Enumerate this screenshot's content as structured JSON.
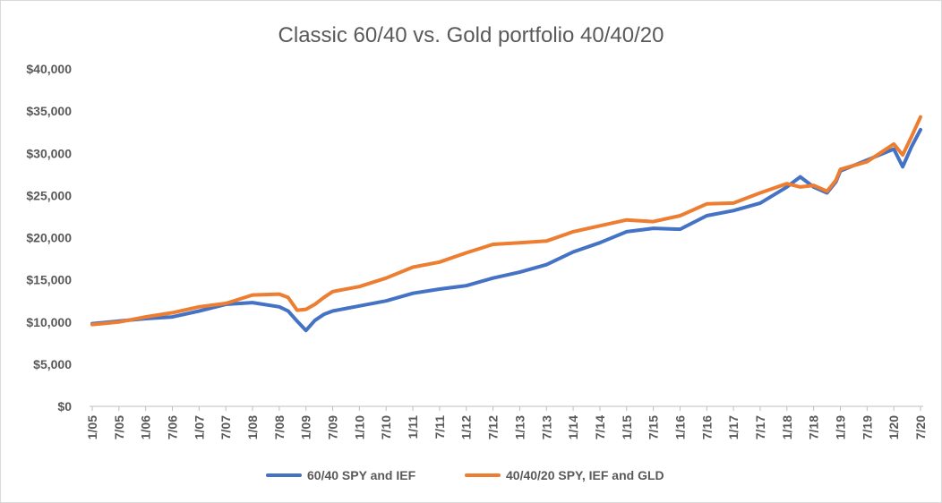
{
  "chart_data": {
    "type": "line",
    "title": "Classic 60/40 vs. Gold portfolio 40/40/20",
    "xlabel": "",
    "ylabel": "",
    "ylim": [
      0,
      40000
    ],
    "yticks": [
      "$0",
      "$5,000",
      "$10,000",
      "$15,000",
      "$20,000",
      "$25,000",
      "$30,000",
      "$35,000",
      "$40,000"
    ],
    "xticks": [
      "1/05",
      "7/05",
      "1/06",
      "7/06",
      "1/07",
      "7/07",
      "1/08",
      "7/08",
      "1/09",
      "7/09",
      "1/10",
      "7/10",
      "1/11",
      "7/11",
      "1/12",
      "7/12",
      "1/13",
      "7/13",
      "1/14",
      "7/14",
      "1/15",
      "7/15",
      "1/16",
      "7/16",
      "1/17",
      "7/17",
      "1/18",
      "7/18",
      "1/19",
      "7/19",
      "1/20",
      "7/20"
    ],
    "x": [
      "1/05",
      "7/05",
      "1/06",
      "7/06",
      "1/07",
      "7/07",
      "1/08",
      "7/08",
      "9/08",
      "11/08",
      "1/09",
      "3/09",
      "5/09",
      "7/09",
      "1/10",
      "7/10",
      "1/11",
      "7/11",
      "1/12",
      "7/12",
      "1/13",
      "7/13",
      "1/14",
      "7/14",
      "1/15",
      "7/15",
      "1/16",
      "7/16",
      "1/17",
      "7/17",
      "1/18",
      "4/18",
      "7/18",
      "10/18",
      "12/18",
      "1/19",
      "7/19",
      "1/20",
      "3/20",
      "5/20",
      "7/20"
    ],
    "series": [
      {
        "name": "60/40 SPY and IEF",
        "color": "#4472c4",
        "values": [
          9800,
          10100,
          10400,
          10600,
          11300,
          12100,
          12300,
          11800,
          11300,
          10100,
          9000,
          10200,
          10900,
          11300,
          11900,
          12500,
          13400,
          13900,
          14300,
          15200,
          15900,
          16800,
          18300,
          19400,
          20700,
          21100,
          21000,
          22600,
          23200,
          24100,
          26000,
          27200,
          26000,
          25300,
          26600,
          27900,
          29200,
          30500,
          28400,
          30800,
          32800
        ]
      },
      {
        "name": "40/40/20 SPY, IEF and GLD",
        "color": "#ed7d31",
        "values": [
          9700,
          10000,
          10600,
          11100,
          11800,
          12200,
          13200,
          13300,
          12900,
          11400,
          11500,
          12100,
          12900,
          13600,
          14200,
          15200,
          16500,
          17100,
          18200,
          19200,
          19400,
          19600,
          20700,
          21400,
          22100,
          21900,
          22600,
          24000,
          24100,
          25300,
          26400,
          26000,
          26200,
          25500,
          26800,
          28100,
          29000,
          31100,
          29800,
          32000,
          34300
        ]
      }
    ],
    "legend": {
      "position": "bottom"
    },
    "grid": false
  }
}
